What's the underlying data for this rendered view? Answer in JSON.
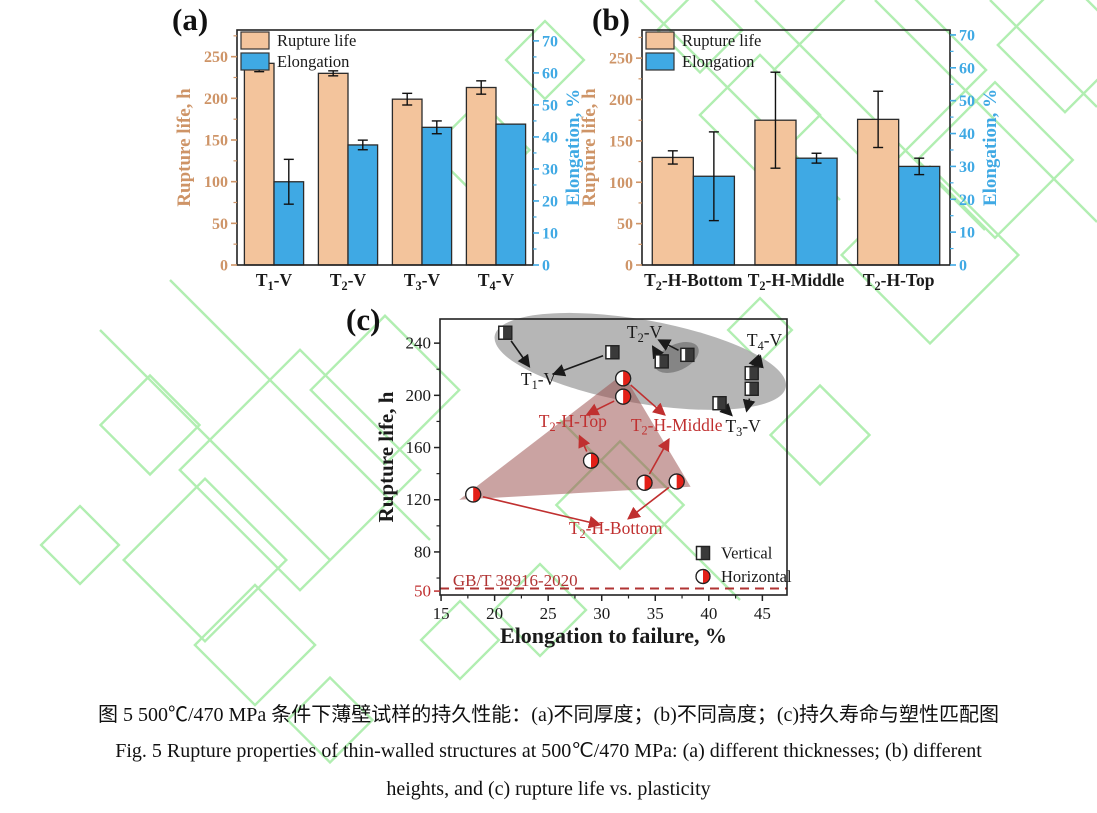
{
  "watermark": {
    "color": "#97E897"
  },
  "captions": {
    "chinese": "图 5 500℃/470 MPa 条件下薄壁试样的持久性能：(a)不同厚度；(b)不同高度；(c)持久寿命与塑性匹配图",
    "english_line1": "Fig. 5 Rupture properties of thin-walled structures at 500℃/470 MPa: (a) different thicknesses; (b) different",
    "english_line2": "heights, and (c) rupture life vs. plasticity"
  },
  "chart_data": [
    {
      "id": "a",
      "panel_label": "(a)",
      "type": "bar",
      "categories": [
        "T~1~-V",
        "T~2~-V",
        "T~3~-V",
        "T~4~-V"
      ],
      "series": [
        {
          "name": "Rupture life",
          "axis": "left",
          "color": "#F3C49C",
          "values": [
            242,
            230,
            199,
            213
          ],
          "errors": [
            10,
            3,
            7,
            8
          ]
        },
        {
          "name": "Elongation",
          "axis": "right",
          "color": "#3FA9E4",
          "values": [
            26,
            37.5,
            43,
            44
          ],
          "errors": [
            7,
            1.5,
            2,
            0
          ]
        }
      ],
      "left_axis": {
        "label": "Rupture life, h",
        "color": "#CE9467",
        "ticks": [
          0,
          50,
          100,
          150,
          200,
          250
        ],
        "range": [
          0,
          282
        ]
      },
      "right_axis": {
        "label": "Elongation, %",
        "color": "#3FA9E4",
        "ticks": [
          0,
          10,
          20,
          30,
          40,
          50,
          60,
          70
        ],
        "range": [
          0,
          73.4
        ]
      }
    },
    {
      "id": "b",
      "panel_label": "(b)",
      "type": "bar",
      "categories": [
        "T~2~-H-Bottom",
        "T~2~-H-Middle",
        "T~2~-H-Top"
      ],
      "series": [
        {
          "name": "Rupture life",
          "axis": "left",
          "color": "#F3C49C",
          "values": [
            130,
            175,
            176
          ],
          "errors": [
            8,
            58,
            34
          ]
        },
        {
          "name": "Elongation",
          "axis": "right",
          "color": "#3FA9E4",
          "values": [
            27,
            32.5,
            30
          ],
          "errors": [
            13.5,
            1.5,
            2.5
          ]
        }
      ],
      "left_axis": {
        "label": "Rupture life, h",
        "color": "#CE9467",
        "ticks": [
          0,
          50,
          100,
          150,
          200,
          250
        ],
        "range": [
          0,
          284
        ]
      },
      "right_axis": {
        "label": "Elongation, %",
        "color": "#3FA9E4",
        "ticks": [
          0,
          10,
          20,
          30,
          40,
          50,
          60,
          70
        ],
        "range": [
          0,
          71.5
        ]
      }
    },
    {
      "id": "c",
      "panel_label": "(c)",
      "type": "scatter",
      "xlabel": "Elongation to failure, %",
      "ylabel": "Rupture life, h",
      "xlim": [
        14.9,
        47.3
      ],
      "ylim": [
        47,
        258.5
      ],
      "x_ticks": [
        15,
        20,
        25,
        30,
        35,
        40,
        45
      ],
      "y_ticks": [
        {
          "v": 50,
          "color": "#C03030"
        },
        {
          "v": 80
        },
        {
          "v": 120
        },
        {
          "v": 160
        },
        {
          "v": 200
        },
        {
          "v": 240
        }
      ],
      "y_minor_ticks": [
        60,
        100,
        140,
        180,
        220
      ],
      "reference_line": {
        "y": 52,
        "label": "GB/T 38916-2020",
        "color": "#B03333",
        "style": "dashed"
      },
      "series": [
        {
          "name": "Vertical",
          "marker": "half-square",
          "color": "#3A3A3A",
          "points": [
            [
              21,
              248
            ],
            [
              31,
              233
            ],
            [
              35.6,
              226
            ],
            [
              38,
              231
            ],
            [
              44,
              217
            ],
            [
              44,
              205
            ],
            [
              41,
              194
            ]
          ]
        },
        {
          "name": "Horizontal",
          "marker": "half-circle",
          "color": "#E32018",
          "points": [
            [
              32,
              213
            ],
            [
              32,
              199
            ],
            [
              29,
              150
            ],
            [
              34,
              133
            ],
            [
              37,
              134
            ],
            [
              18,
              124
            ]
          ]
        }
      ],
      "regions": [
        {
          "type": "ellipse",
          "name": "vertical-cluster-ellipse",
          "cx": 33.6,
          "cy": 226,
          "rx": 13.8,
          "ry": 32,
          "rotate": 10,
          "color": "#ACACAC",
          "opacity": 0.88
        },
        {
          "type": "ellipse",
          "name": "t2v-cluster-ellipse",
          "cx": 37.0,
          "cy": 229,
          "rx": 2.2,
          "ry": 10,
          "rotate": -25,
          "color": "#838383",
          "opacity": 0.95
        },
        {
          "type": "polygon",
          "name": "horizontal-cluster-polygon",
          "points": [
            [
              16.7,
              120
            ],
            [
              32,
              216.5
            ],
            [
              38.3,
              130
            ]
          ],
          "color": "#9A4F4C",
          "opacity": 0.52
        }
      ],
      "annotations": [
        {
          "text": "T~1~-V",
          "x": 24.1,
          "y": 212,
          "color": "#1a1a1a",
          "from": [
            [
              21,
              248
            ],
            [
              31,
              233
            ]
          ]
        },
        {
          "text": "T~2~-V",
          "x": 34.0,
          "y": 248,
          "color": "#1a1a1a",
          "from": [
            [
              35.6,
              226
            ],
            [
              38,
              231
            ]
          ]
        },
        {
          "text": "T~4~-V",
          "x": 45.2,
          "y": 242,
          "color": "#1a1a1a",
          "from": [
            [
              44,
              217
            ],
            [
              44,
              205
            ]
          ]
        },
        {
          "text": "T~3~-V",
          "x": 43.2,
          "y": 176,
          "color": "#1a1a1a",
          "from": [
            [
              41,
              194
            ],
            [
              44,
              205
            ]
          ]
        },
        {
          "text": "T~2~-H-Top",
          "x": 27.3,
          "y": 180,
          "color": "#C03030",
          "from": [
            [
              32,
              199
            ],
            [
              29,
              150
            ]
          ]
        },
        {
          "text": "T~2~-H-Middle",
          "x": 37.0,
          "y": 177,
          "color": "#C03030",
          "from": [
            [
              32,
              213
            ],
            [
              34,
              133
            ]
          ]
        },
        {
          "text": "T~2~-H-Bottom",
          "x": 31.3,
          "y": 98,
          "color": "#C03030",
          "from": [
            [
              18,
              124
            ],
            [
              37,
              134
            ]
          ]
        }
      ],
      "legend": [
        {
          "label": "Vertical"
        },
        {
          "label": "Horizontal"
        }
      ]
    }
  ]
}
